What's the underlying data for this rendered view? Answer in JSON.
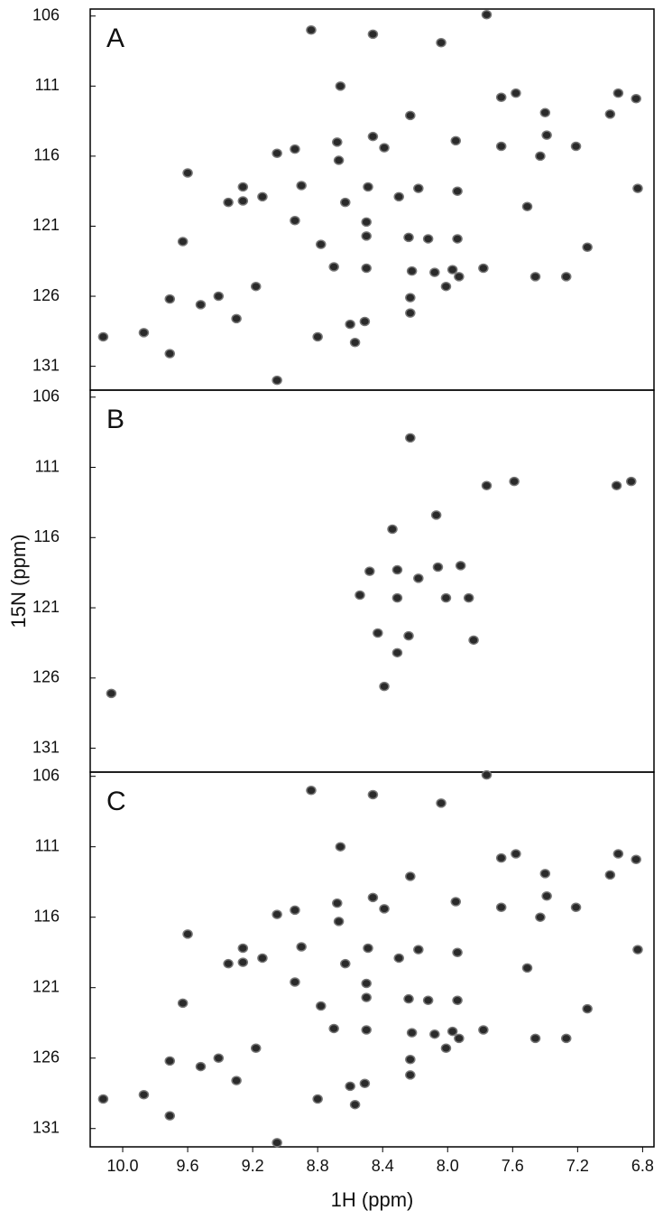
{
  "chart_data": [
    {
      "type": "scatter",
      "label": "A",
      "color": "#2a2a2a",
      "xlim": [
        10.2,
        6.73
      ],
      "ylim": [
        105.5,
        132.7
      ],
      "yticks": [
        106,
        111,
        116,
        121,
        126,
        131
      ],
      "x": [
        7.76,
        8.04,
        8.84,
        8.46,
        8.66,
        7.67,
        7.58,
        6.95,
        6.84,
        7.0,
        7.4,
        7.39,
        8.23,
        8.46,
        7.95,
        8.68,
        9.05,
        8.94,
        8.67,
        8.39,
        7.67,
        7.43,
        7.21,
        9.6,
        8.9,
        8.49,
        9.26,
        9.26,
        9.35,
        9.14,
        8.63,
        8.18,
        8.3,
        7.94,
        7.51,
        6.83,
        8.94,
        8.5,
        8.5,
        8.24,
        8.12,
        7.94,
        9.63,
        8.78,
        8.7,
        8.5,
        7.97,
        7.78,
        7.14,
        8.22,
        8.08,
        7.27,
        7.46,
        7.93,
        8.01,
        9.18,
        9.71,
        9.41,
        9.52,
        8.23,
        8.23,
        9.3,
        8.51,
        8.6,
        10.12,
        9.87,
        8.8,
        8.57,
        9.71,
        9.05
      ],
      "values": [
        105.9,
        107.9,
        107.0,
        107.3,
        111.0,
        111.8,
        111.5,
        111.5,
        111.9,
        113.0,
        112.9,
        114.5,
        113.1,
        114.6,
        114.9,
        115.0,
        115.8,
        115.5,
        116.3,
        115.4,
        115.3,
        116.0,
        115.3,
        117.2,
        118.1,
        118.2,
        118.2,
        119.2,
        119.3,
        118.9,
        119.3,
        118.3,
        118.9,
        118.5,
        119.6,
        118.3,
        120.6,
        120.7,
        121.7,
        121.8,
        121.9,
        121.9,
        122.1,
        122.3,
        123.9,
        124.0,
        124.1,
        124.0,
        122.5,
        124.2,
        124.3,
        124.6,
        124.6,
        124.6,
        125.3,
        125.3,
        126.2,
        126.0,
        126.6,
        126.1,
        127.2,
        127.6,
        127.8,
        128.0,
        128.9,
        128.6,
        128.9,
        129.3,
        130.1,
        132.0
      ]
    },
    {
      "type": "scatter",
      "label": "B",
      "color": "#2a2a2a",
      "ylabel": "15N (ppm)",
      "xlim": [
        10.2,
        6.73
      ],
      "ylim": [
        105.5,
        132.7
      ],
      "yticks": [
        106,
        111,
        116,
        121,
        126,
        131
      ],
      "x": [
        7.76,
        7.59,
        6.96,
        6.87,
        8.23,
        8.07,
        8.34,
        8.48,
        8.31,
        8.06,
        7.92,
        8.18,
        8.54,
        8.31,
        8.01,
        7.87,
        8.43,
        8.24,
        8.31,
        7.84,
        8.39,
        10.07
      ],
      "values": [
        112.3,
        112.0,
        112.3,
        112.0,
        108.9,
        114.4,
        115.4,
        118.4,
        118.3,
        118.1,
        118.0,
        118.9,
        120.1,
        120.3,
        120.3,
        120.3,
        122.8,
        123.0,
        124.2,
        123.3,
        126.6,
        127.1
      ]
    },
    {
      "type": "scatter",
      "label": "C",
      "color": "#2a2a2a",
      "xlabel": "1H (ppm)",
      "xlim": [
        10.2,
        6.73
      ],
      "ylim": [
        105.7,
        132.3
      ],
      "yticks": [
        106,
        111,
        116,
        121,
        126,
        131
      ],
      "xticks": [
        {
          "value": 10,
          "label": "10.0"
        },
        9.6,
        9.2,
        8.8,
        8.4,
        {
          "value": 8,
          "label": "8.0"
        },
        7.6,
        7.2,
        6.8
      ],
      "x": [
        7.76,
        8.04,
        8.84,
        8.46,
        8.66,
        7.67,
        7.58,
        6.95,
        6.84,
        7.0,
        7.4,
        7.39,
        8.23,
        8.46,
        7.95,
        8.68,
        9.05,
        8.94,
        8.67,
        8.39,
        7.67,
        7.43,
        7.21,
        9.6,
        8.9,
        8.49,
        9.26,
        9.26,
        9.35,
        9.14,
        8.63,
        8.18,
        8.3,
        7.94,
        7.51,
        6.83,
        8.94,
        8.5,
        8.5,
        8.24,
        8.12,
        7.94,
        9.63,
        8.78,
        8.7,
        8.5,
        7.97,
        7.78,
        7.14,
        8.22,
        8.08,
        7.27,
        7.46,
        7.93,
        8.01,
        9.18,
        9.71,
        9.41,
        9.52,
        8.23,
        8.23,
        9.3,
        8.51,
        8.6,
        10.12,
        9.87,
        8.8,
        8.57,
        9.71,
        9.05
      ],
      "values": [
        105.9,
        107.9,
        107.0,
        107.3,
        111.0,
        111.8,
        111.5,
        111.5,
        111.9,
        113.0,
        112.9,
        114.5,
        113.1,
        114.6,
        114.9,
        115.0,
        115.8,
        115.5,
        116.3,
        115.4,
        115.3,
        116.0,
        115.3,
        117.2,
        118.1,
        118.2,
        118.2,
        119.2,
        119.3,
        118.9,
        119.3,
        118.3,
        118.9,
        118.5,
        119.6,
        118.3,
        120.6,
        120.7,
        121.7,
        121.8,
        121.9,
        121.9,
        122.1,
        122.3,
        123.9,
        124.0,
        124.1,
        124.0,
        122.5,
        124.2,
        124.3,
        124.6,
        124.6,
        124.6,
        125.3,
        125.3,
        126.2,
        126.0,
        126.6,
        126.1,
        127.2,
        127.6,
        127.8,
        128.0,
        128.9,
        128.6,
        128.9,
        129.3,
        130.1,
        132.0
      ]
    }
  ]
}
